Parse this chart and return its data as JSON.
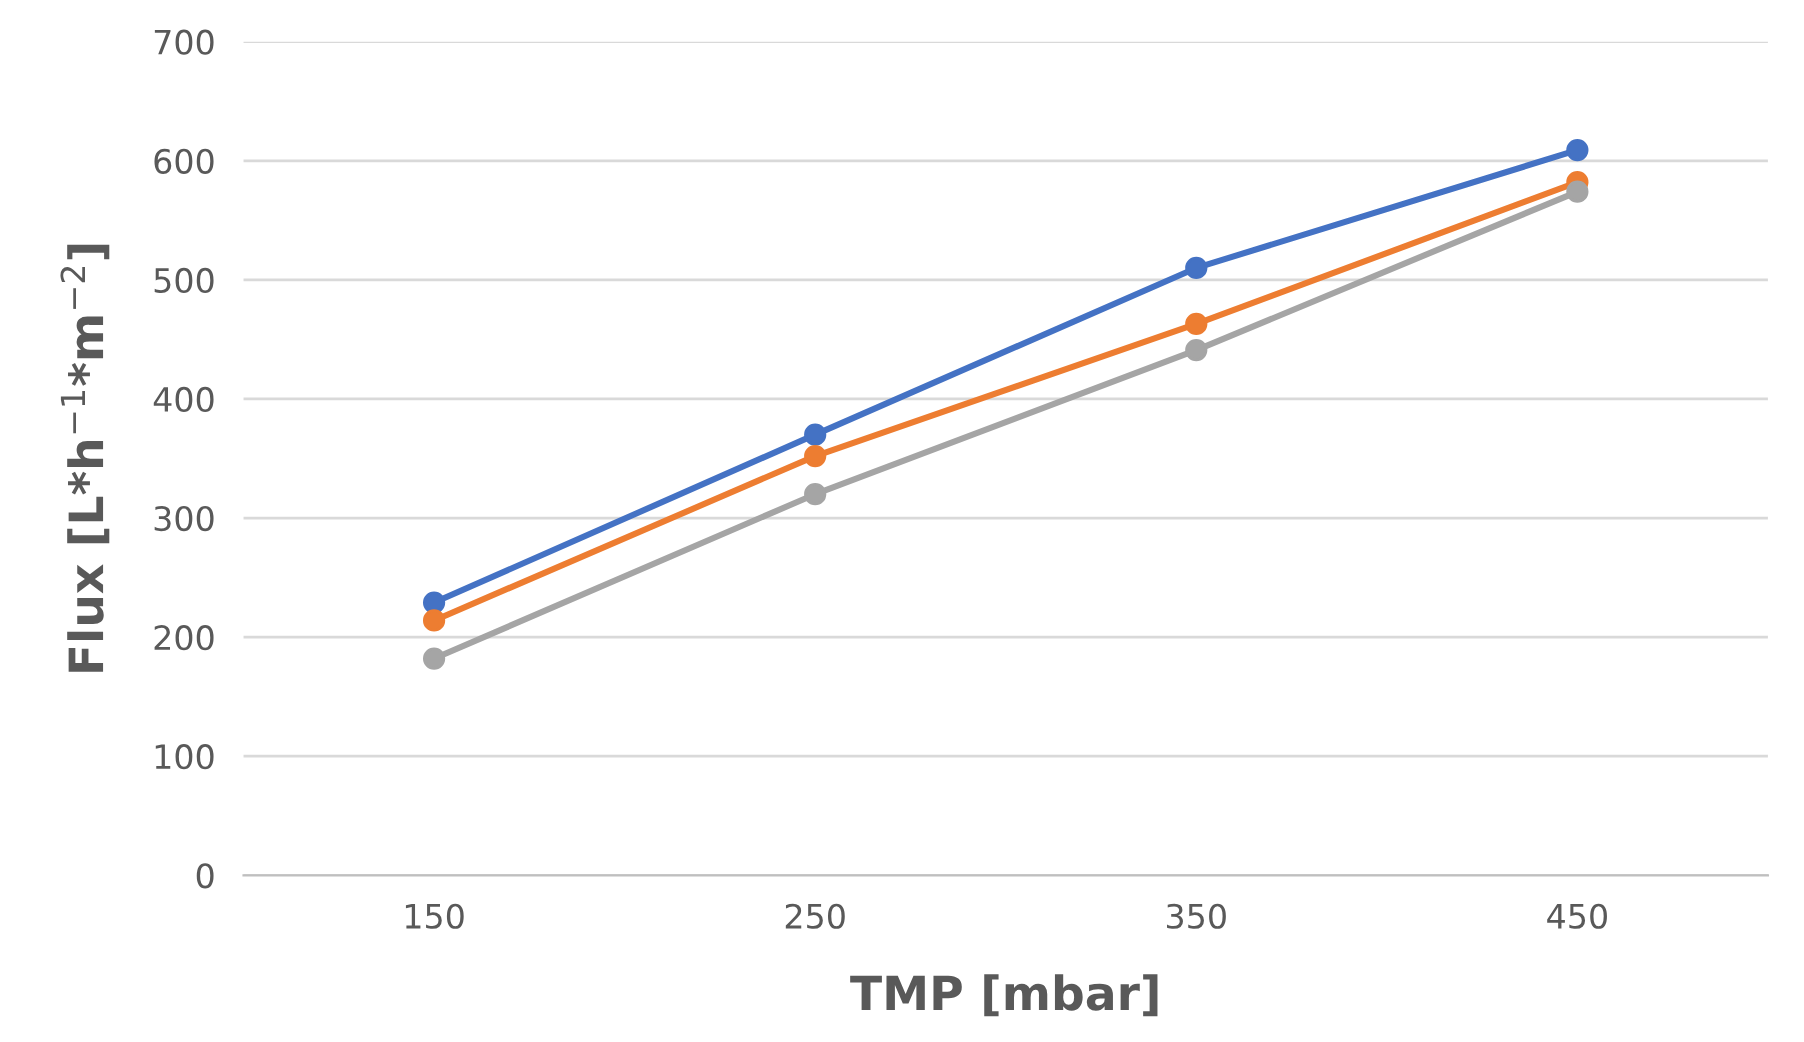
{
  "chart_data": {
    "type": "line",
    "xlabel": "TMP [mbar]",
    "ylabel": "Flux [L*h$^{−1}$*m$^{−2}$]",
    "categories": [
      "150",
      "250",
      "350",
      "450"
    ],
    "series": [
      {
        "color": "#4472c4",
        "values": [
          229,
          370,
          510,
          609
        ]
      },
      {
        "color": "#ed7d31",
        "values": [
          214,
          352,
          463,
          582
        ]
      },
      {
        "color": "#a5a5a5",
        "values": [
          182,
          320,
          441,
          574
        ]
      }
    ],
    "ylim": [
      0,
      700
    ],
    "yticks": [
      0,
      100,
      200,
      300,
      400,
      500,
      600,
      700
    ],
    "grid": "y",
    "marker": "circle",
    "line_style": "solid"
  }
}
